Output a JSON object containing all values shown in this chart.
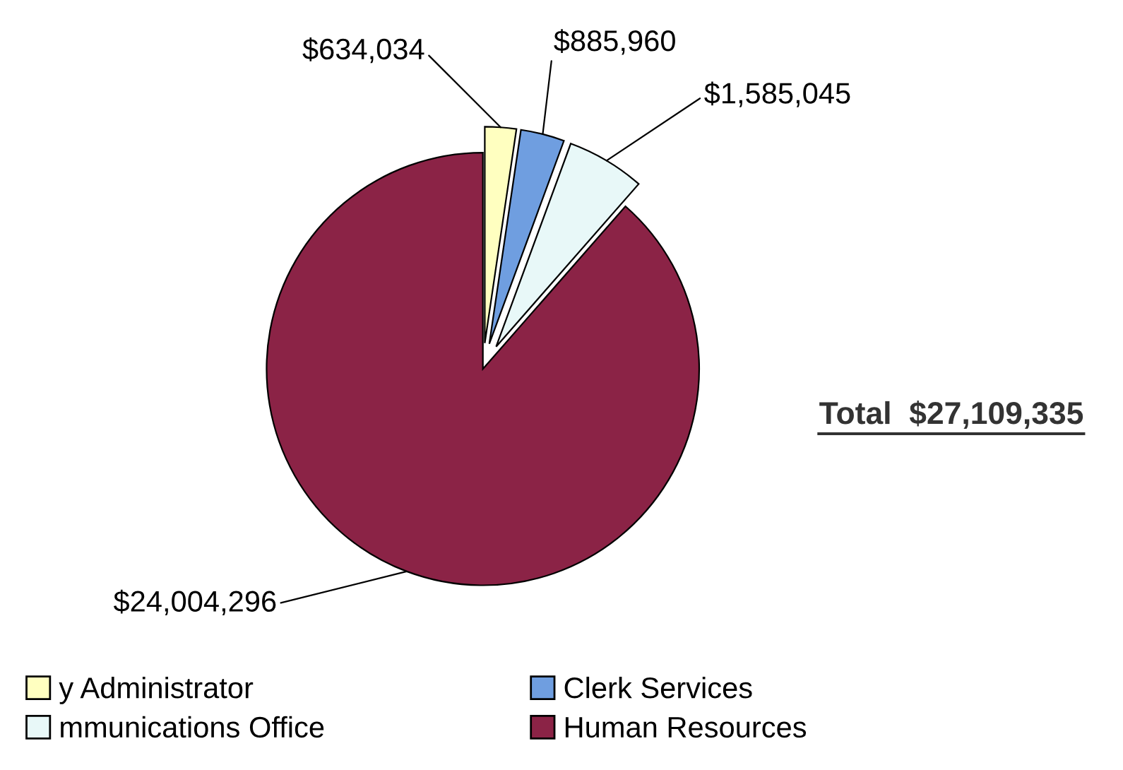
{
  "chart_data": {
    "type": "pie",
    "categories": [
      "y Administrator",
      "Clerk Services",
      "mmunications Office",
      "Human Resources"
    ],
    "values": [
      634034,
      885960,
      1585045,
      24004296
    ],
    "value_labels": [
      "$634,034",
      "$885,960",
      "$1,585,045",
      "$24,004,296"
    ],
    "colors": [
      "#ffffc0",
      "#6f9ee0",
      "#e8f8f8",
      "#8b2346"
    ],
    "annotations": [
      "Total  $27,109,335"
    ],
    "legend": "bottom"
  }
}
